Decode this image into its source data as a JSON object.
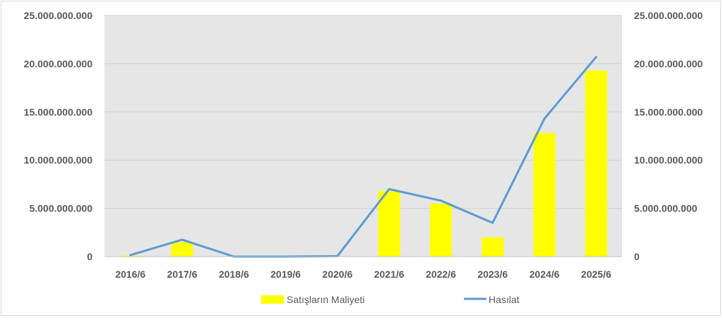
{
  "chart_data": {
    "type": "bar+line",
    "categories": [
      "2016/6",
      "2017/6",
      "2018/6",
      "2019/6",
      "2020/6",
      "2021/6",
      "2022/6",
      "2023/6",
      "2024/6",
      "2025/6"
    ],
    "series": [
      {
        "name": "Satışların Maliyeti",
        "type": "bar",
        "axis": "left",
        "color": "#ffff00",
        "values": [
          100000000,
          1500000000,
          0,
          0,
          0,
          6800000000,
          5500000000,
          2000000000,
          12800000000,
          19300000000
        ]
      },
      {
        "name": "Hasılat",
        "type": "line",
        "axis": "right",
        "color": "#5b9bd5",
        "values": [
          150000000,
          1750000000,
          0,
          0,
          50000000,
          7000000000,
          5800000000,
          3500000000,
          14300000000,
          20700000000
        ]
      }
    ],
    "y_ticks": [
      "0",
      "5.000.000.000",
      "10.000.000.000",
      "15.000.000.000",
      "20.000.000.000",
      "25.000.000.000"
    ],
    "y2_ticks": [
      "0",
      "5.000.000.000",
      "10.000.000.000",
      "15.000.000.000",
      "20.000.000.000",
      "25.000.000.000"
    ],
    "ylim": [
      0,
      25000000000
    ],
    "y2lim": [
      0,
      25000000000
    ],
    "grid": true,
    "plot_background": "#e7e6e6",
    "legend_position": "bottom",
    "title": "",
    "xlabel": "",
    "ylabel": ""
  }
}
